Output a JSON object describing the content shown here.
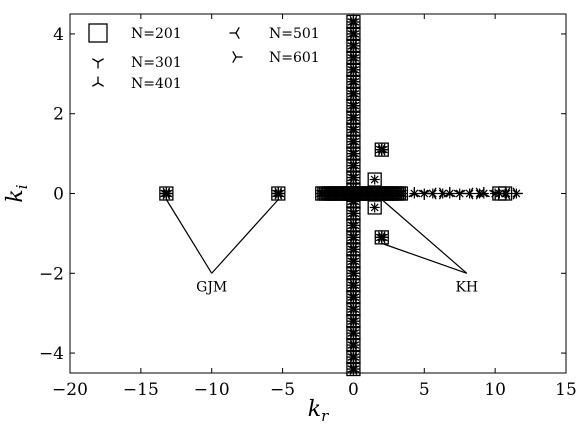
{
  "chart_data": {
    "type": "scatter",
    "xlabel": "k",
    "xlabel_sub": "r",
    "ylabel": "k",
    "ylabel_sub": "i",
    "xlim": [
      -20,
      15
    ],
    "ylim": [
      -4.5,
      4.5
    ],
    "xticks": [
      -20,
      -15,
      -10,
      -5,
      0,
      5,
      10,
      15
    ],
    "yticks": [
      -4,
      -2,
      0,
      2,
      4
    ],
    "x_tick_labels": [
      "−20",
      "−15",
      "−10",
      "−5",
      "0",
      "5",
      "10",
      "15"
    ],
    "y_tick_labels": [
      "−4",
      "−2",
      "0",
      "2",
      "4"
    ],
    "grid": false,
    "legend_position": "top-left",
    "series": [
      {
        "name": "N=201",
        "marker": "square",
        "points": [
          [
            -13.2,
            0
          ],
          [
            -5.3,
            0
          ],
          [
            2.0,
            1.1
          ],
          [
            2.0,
            -1.1
          ],
          [
            1.5,
            0.35
          ],
          [
            1.5,
            -0.35
          ],
          [
            10.3,
            0
          ],
          [
            10.7,
            0
          ]
        ]
      },
      {
        "name": "N=301",
        "marker": "tri_down",
        "points": [
          [
            -13.2,
            0
          ],
          [
            -5.3,
            0
          ],
          [
            2.0,
            1.1
          ],
          [
            2.0,
            -1.1
          ],
          [
            5.0,
            0
          ],
          [
            7.5,
            0
          ],
          [
            10.0,
            0
          ]
        ]
      },
      {
        "name": "N=401",
        "marker": "tri_up",
        "points": [
          [
            -13.2,
            0
          ],
          [
            -5.3,
            0
          ],
          [
            2.0,
            1.1
          ],
          [
            2.0,
            -1.1
          ],
          [
            4.3,
            0
          ],
          [
            6.8,
            0
          ],
          [
            9.2,
            0
          ]
        ]
      },
      {
        "name": "N=501",
        "marker": "tri_left",
        "points": [
          [
            -13.2,
            0
          ],
          [
            -5.3,
            0
          ],
          [
            2.0,
            1.1
          ],
          [
            2.0,
            -1.1
          ],
          [
            5.6,
            0
          ],
          [
            8.2,
            0
          ],
          [
            10.8,
            0
          ]
        ]
      },
      {
        "name": "N=601",
        "marker": "tri_right",
        "points": [
          [
            -13.2,
            0
          ],
          [
            -5.3,
            0
          ],
          [
            2.0,
            1.1
          ],
          [
            2.0,
            -1.1
          ],
          [
            6.3,
            0
          ],
          [
            8.9,
            0
          ],
          [
            11.5,
            0
          ]
        ]
      }
    ],
    "vertical_column": {
      "x": 0,
      "y_from": -4.4,
      "y_to": 4.4,
      "y_step": 0.3
    },
    "horizontal_cluster": {
      "x_from": -2.2,
      "x_to": 3.4,
      "x_step": 0.15,
      "y": 0
    },
    "annotations": [
      {
        "text": "GJM",
        "at": [
          -10,
          -2
        ],
        "targets": [
          [
            -13.2,
            0
          ],
          [
            -5.3,
            0
          ]
        ]
      },
      {
        "text": "KH",
        "at": [
          8,
          -2
        ],
        "targets": [
          [
            2.0,
            -1.1
          ],
          [
            2.0,
            0
          ]
        ]
      }
    ]
  }
}
